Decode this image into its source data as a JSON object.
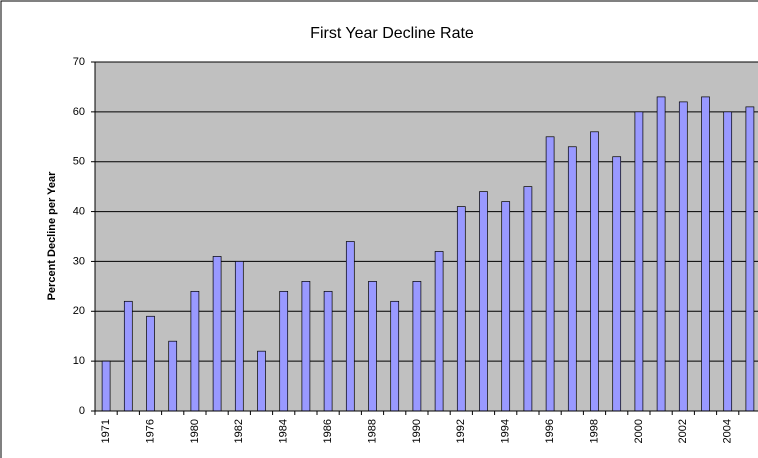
{
  "chart_data": {
    "type": "bar",
    "title": "First Year Decline Rate",
    "y_label": "Percent Decline per Year",
    "categories": [
      "1971",
      null,
      "1976",
      null,
      "1980",
      null,
      "1982",
      null,
      "1984",
      null,
      "1986",
      null,
      "1988",
      null,
      "1990",
      null,
      "1992",
      null,
      "1994",
      null,
      "1996",
      null,
      "1998",
      null,
      "2000",
      null,
      "2002",
      null,
      "2004",
      null
    ],
    "values": [
      10,
      22,
      19,
      14,
      24,
      31,
      30,
      12,
      24,
      26,
      24,
      34,
      26,
      22,
      26,
      32,
      41,
      44,
      42,
      45,
      55,
      53,
      56,
      51,
      60,
      63,
      62,
      63,
      60,
      61
    ],
    "color": "#9999ff",
    "plot_background": "#c0c0c0",
    "ylim": [
      0,
      70
    ],
    "yticks": [
      0,
      10,
      20,
      30,
      40,
      50,
      60,
      70
    ],
    "grid": true
  }
}
